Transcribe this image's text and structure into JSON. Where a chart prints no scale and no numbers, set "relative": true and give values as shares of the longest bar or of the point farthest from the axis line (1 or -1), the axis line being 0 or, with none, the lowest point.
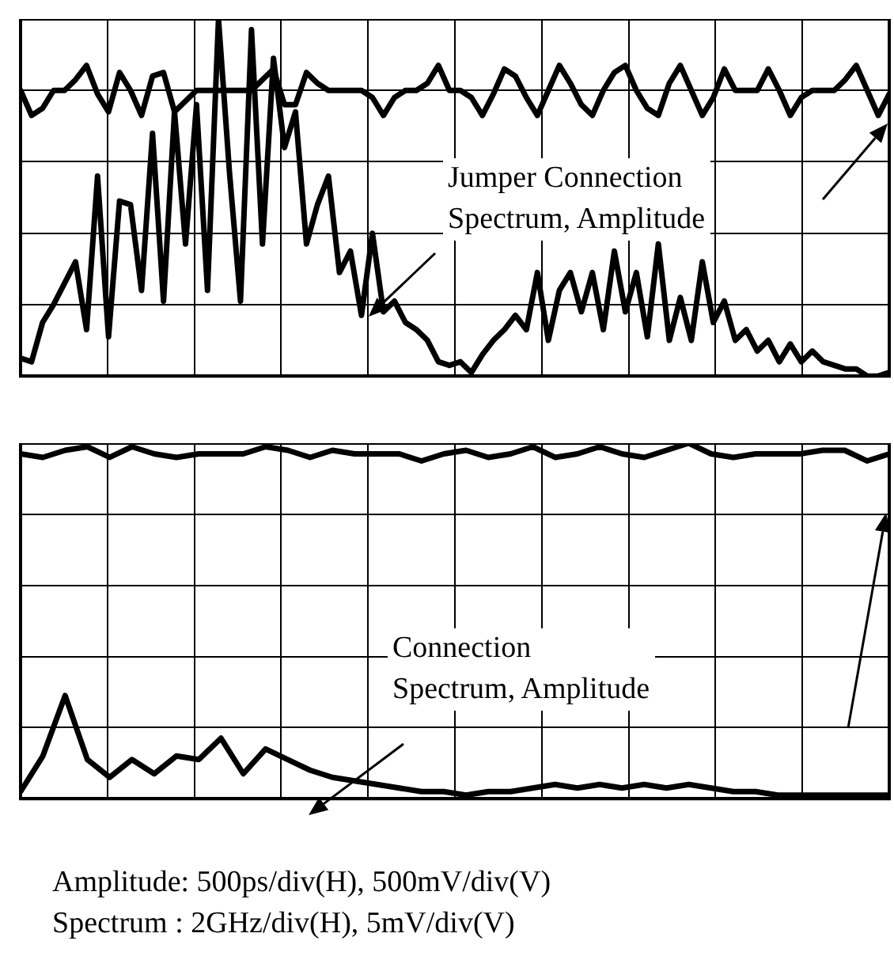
{
  "chart_data": [
    {
      "type": "line",
      "relative": true,
      "grid": true,
      "marker": "none",
      "line_style": "solid",
      "categories": [
        null,
        null,
        null,
        null,
        null,
        null,
        null,
        null,
        null,
        null,
        null,
        null,
        null,
        null,
        null,
        null,
        null,
        null,
        null,
        null,
        null,
        null,
        null,
        null,
        null,
        null,
        null,
        null,
        null,
        null,
        null,
        null,
        null,
        null,
        null,
        null,
        null,
        null,
        null,
        null,
        null,
        null,
        null,
        null,
        null,
        null,
        null,
        null,
        null,
        null,
        null,
        null,
        null,
        null,
        null,
        null,
        null,
        null,
        null,
        null,
        null,
        null,
        null,
        null,
        null,
        null,
        null,
        null,
        null,
        null,
        null,
        null,
        null,
        null,
        null,
        null,
        null,
        null,
        null,
        null
      ],
      "series": [
        {
          "color": "#000000",
          "values": [
            0.8,
            0.73,
            0.75,
            0.8,
            0.8,
            0.83,
            0.87,
            0.79,
            0.74,
            0.85,
            0.8,
            0.73,
            0.84,
            0.85,
            0.74,
            0.77,
            0.8,
            0.8,
            0.8,
            0.8,
            0.8,
            0.8,
            0.83,
            0.86,
            0.76,
            0.76,
            0.85,
            0.82,
            0.8,
            0.8,
            0.8,
            0.8,
            0.78,
            0.73,
            0.78,
            0.8,
            0.8,
            0.82,
            0.87,
            0.8,
            0.8,
            0.78,
            0.73,
            0.79,
            0.86,
            0.84,
            0.78,
            0.73,
            0.8,
            0.87,
            0.82,
            0.76,
            0.73,
            0.8,
            0.85,
            0.87,
            0.8,
            0.75,
            0.73,
            0.82,
            0.87,
            0.8,
            0.73,
            0.78,
            0.86,
            0.8,
            0.8,
            0.8,
            0.86,
            0.8,
            0.73,
            0.78,
            0.8,
            0.8,
            0.8,
            0.83,
            0.87,
            0.8,
            0.73,
            0.79
          ]
        },
        {
          "color": "#000000",
          "values": [
            0.05,
            0.04,
            0.15,
            0.2,
            0.26,
            0.32,
            0.13,
            0.56,
            0.11,
            0.49,
            0.48,
            0.24,
            0.68,
            0.21,
            0.74,
            0.37,
            0.76,
            0.24,
            1.0,
            0.57,
            0.21,
            0.97,
            0.37,
            0.89,
            0.64,
            0.74,
            0.37,
            0.48,
            0.56,
            0.29,
            0.35,
            0.17,
            0.4,
            0.18,
            0.21,
            0.15,
            0.13,
            0.1,
            0.04,
            0.03,
            0.04,
            0.01,
            0.06,
            0.1,
            0.13,
            0.17,
            0.13,
            0.29,
            0.1,
            0.24,
            0.29,
            0.18,
            0.29,
            0.13,
            0.35,
            0.18,
            0.29,
            0.11,
            0.37,
            0.1,
            0.22,
            0.1,
            0.32,
            0.15,
            0.21,
            0.1,
            0.13,
            0.07,
            0.1,
            0.04,
            0.09,
            0.04,
            0.07,
            0.04,
            0.03,
            0.02,
            0.02,
            0.0,
            0.0,
            0.01
          ]
        }
      ],
      "annotations": [
        "Jumper Connection\nSpectrum, Amplitude"
      ]
    },
    {
      "type": "line",
      "relative": true,
      "grid": true,
      "marker": "none",
      "line_style": "solid",
      "categories": [
        null,
        null,
        null,
        null,
        null,
        null,
        null,
        null,
        null,
        null,
        null,
        null,
        null,
        null,
        null,
        null,
        null,
        null,
        null,
        null,
        null,
        null,
        null,
        null,
        null,
        null,
        null,
        null,
        null,
        null,
        null,
        null,
        null,
        null,
        null,
        null,
        null,
        null,
        null,
        null
      ],
      "series": [
        {
          "color": "#000000",
          "values": [
            0.97,
            0.96,
            0.98,
            0.99,
            0.96,
            0.99,
            0.97,
            0.96,
            0.97,
            0.97,
            0.97,
            0.99,
            0.98,
            0.96,
            0.98,
            0.97,
            0.97,
            0.97,
            0.95,
            0.97,
            0.98,
            0.96,
            0.97,
            0.99,
            0.96,
            0.97,
            0.99,
            0.97,
            0.96,
            0.98,
            1.0,
            0.97,
            0.96,
            0.97,
            0.97,
            0.97,
            0.98,
            0.98,
            0.95,
            0.97
          ]
        },
        {
          "color": "#000000",
          "values": [
            0.02,
            0.12,
            0.29,
            0.11,
            0.06,
            0.11,
            0.07,
            0.12,
            0.11,
            0.17,
            0.07,
            0.14,
            0.11,
            0.08,
            0.06,
            0.05,
            0.04,
            0.03,
            0.02,
            0.02,
            0.01,
            0.02,
            0.02,
            0.03,
            0.04,
            0.03,
            0.04,
            0.03,
            0.04,
            0.03,
            0.04,
            0.03,
            0.02,
            0.02,
            0.01,
            0.01,
            0.01,
            0.01,
            0.01,
            0.01
          ]
        }
      ],
      "annotations": [
        "Connection\nSpectrum, Amplitude",
        "Amplitude: 500ps/div(H), 500mV/div(V)\nSpectrum : 2GHz/div(H), 5mV/div(V)"
      ]
    }
  ]
}
